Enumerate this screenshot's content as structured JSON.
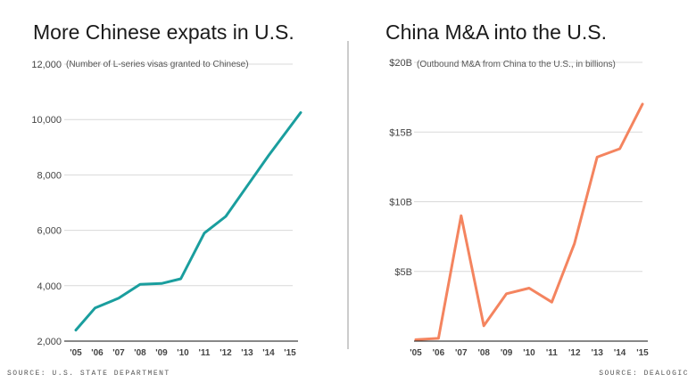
{
  "chart_data": [
    {
      "type": "line",
      "title": "More Chinese expats in U.S.",
      "subtitle": "(Number of L-series visas granted to Chinese)",
      "ylim": [
        2000,
        12000
      ],
      "yticks": [
        2000,
        4000,
        6000,
        8000,
        10000,
        12000
      ],
      "ytick_labels": [
        "2,000",
        "4,000",
        "6,000",
        "8,000",
        "10,000",
        "12,000"
      ],
      "x_labels": [
        "'05",
        "'06",
        "'07",
        "'08",
        "'09",
        "'10",
        "'11",
        "'12",
        "'13",
        "'14",
        "'15"
      ],
      "x": [
        0,
        0.9,
        2,
        3,
        4,
        4.9,
        6,
        7,
        8,
        9,
        10.5
      ],
      "values": [
        2400,
        3200,
        3550,
        4050,
        4080,
        4250,
        5900,
        6500,
        7600,
        8700,
        10250
      ],
      "color": "#1a9e9e",
      "source": "SOURCE: U.S. STATE DEPARTMENT"
    },
    {
      "type": "line",
      "title": "China M&A into the U.S.",
      "subtitle": "(Outbound M&A from China to the U.S., in billions)",
      "ylim": [
        0,
        20
      ],
      "yticks": [
        5,
        10,
        15,
        20
      ],
      "ytick_labels": [
        "$5B",
        "$10B",
        "$15B",
        "$20B"
      ],
      "x_labels": [
        "'05",
        "'06",
        "'07",
        "'08",
        "'09",
        "'10",
        "'11",
        "'12",
        "'13",
        "'14",
        "'15"
      ],
      "x": [
        0,
        1,
        2,
        3,
        4,
        5,
        6,
        7,
        8,
        9,
        10
      ],
      "values": [
        0.1,
        0.2,
        9.0,
        1.1,
        3.4,
        3.8,
        2.8,
        7.0,
        13.2,
        13.8,
        17.0
      ],
      "color": "#f4845f",
      "source": "SOURCE: DEALOGIC"
    }
  ]
}
